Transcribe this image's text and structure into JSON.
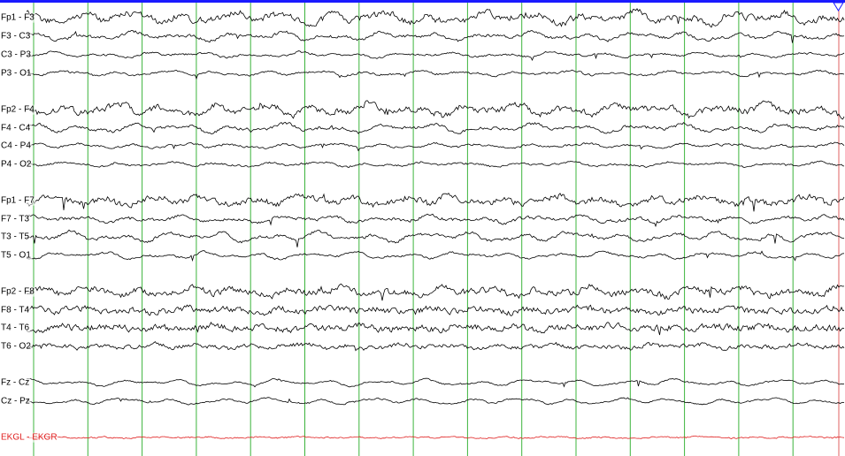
{
  "channels": [
    "Fp1 - F3",
    "F3 - C3",
    "C3 - P3",
    "P3 - O1",
    "Fp2 - F4",
    "F4 - C4",
    "C4 - P4",
    "P4 - O2",
    "Fp1 - F7",
    "F7 - T3",
    "T3 - T5",
    "T5 - O1",
    "Fp2 - F8",
    "F8 - T4",
    "T4 - T6",
    "T6 - O2",
    "Fz - Cz",
    "Cz - Pz",
    "EKGL - EKGR"
  ]
}
